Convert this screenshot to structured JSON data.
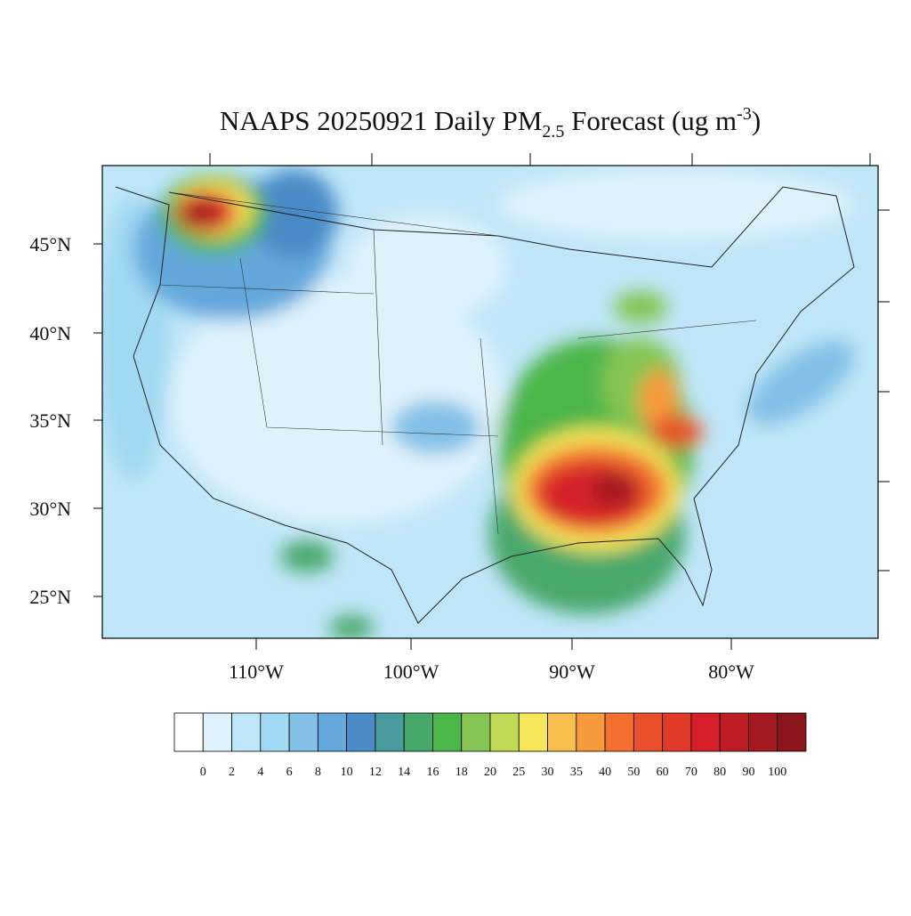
{
  "header": {
    "title_main": "NAAPS 20250921 Daily PM",
    "title_sub": "2.5",
    "title_mid": " Forecast (ug m",
    "title_sup": "-3",
    "title_end": ")"
  },
  "map": {
    "lat_labels": [
      "45°N",
      "40°N",
      "35°N",
      "30°N",
      "25°N"
    ],
    "lon_labels": [
      "110°W",
      "100°W",
      "90°W",
      "80°W"
    ]
  },
  "legend": {
    "labels": [
      "0",
      "2",
      "4",
      "6",
      "8",
      "10",
      "12",
      "14",
      "16",
      "18",
      "20",
      "25",
      "30",
      "35",
      "40",
      "50",
      "60",
      "70",
      "80",
      "90",
      "100"
    ],
    "colors": [
      "#ffffff",
      "#dff2fb",
      "#bfe6f8",
      "#a1d8f2",
      "#82c0e6",
      "#64a8dc",
      "#4a8bc8",
      "#4a9b9e",
      "#48a86c",
      "#4bb54a",
      "#84c553",
      "#c1d955",
      "#f6e75a",
      "#f8bd4c",
      "#f79a3e",
      "#f26f2e",
      "#e8502c",
      "#df3a2a",
      "#d52029",
      "#bc1c24",
      "#a51a20",
      "#8a161b"
    ]
  }
}
